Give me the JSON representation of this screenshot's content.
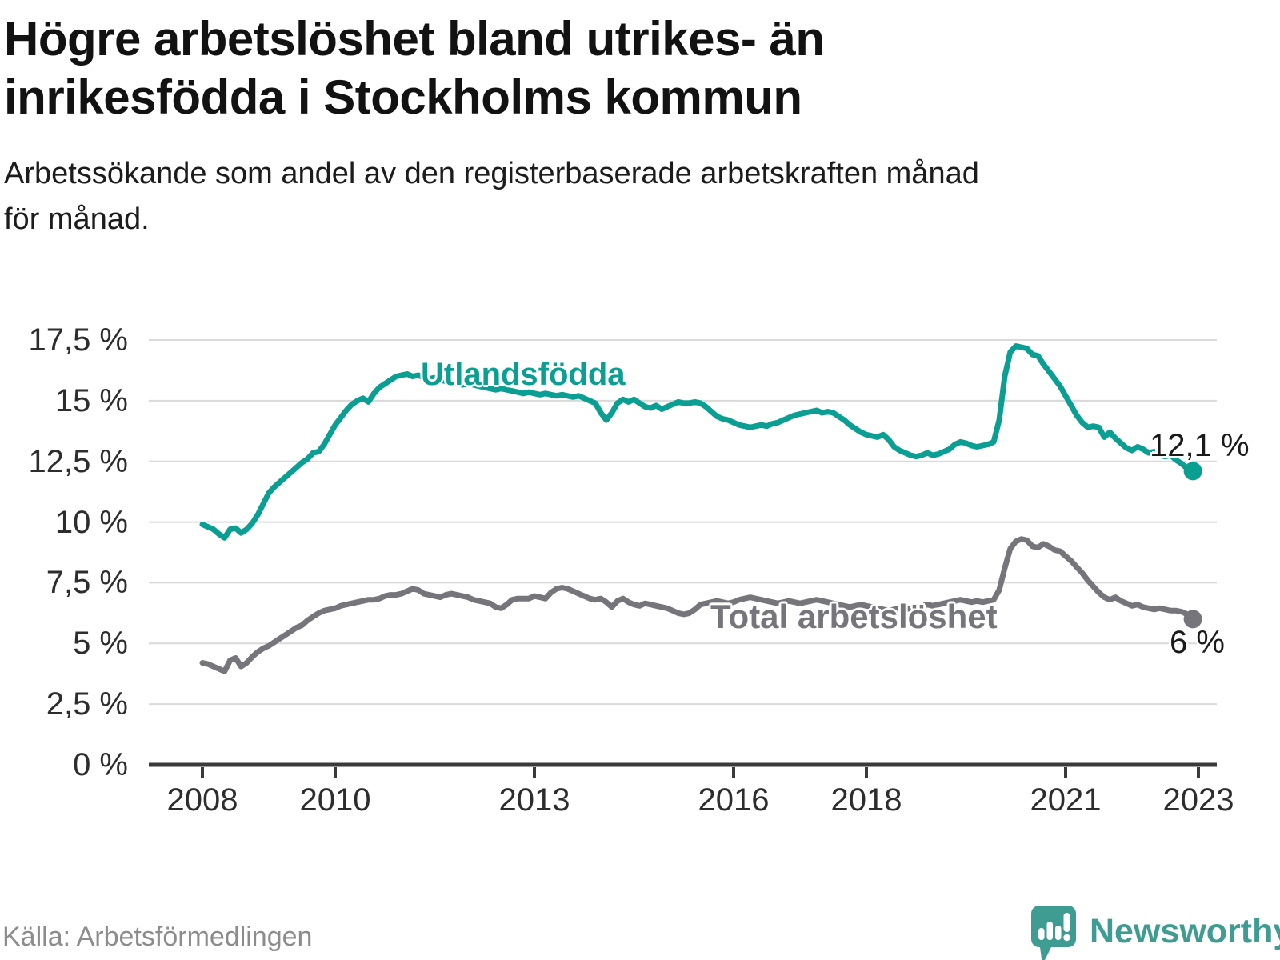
{
  "colors": {
    "accent_teal": "#0B9F94",
    "series_gray": "#76757B",
    "grid": "#dadada",
    "axis": "#3a3a3a",
    "title_text": "#121212",
    "tick_text": "#2d2d2d",
    "source_text": "#8c8c8c",
    "brand_teal": "#3F9C92"
  },
  "source": {
    "label": "Källa: Arbetsförmedlingen"
  },
  "branding": {
    "name": "Newsworthy",
    "logo_icon": "speech-bubble-bar-chart-exclamation-icon"
  },
  "chart_data": {
    "type": "line",
    "title": "Högre arbetslöshet bland utrikes- än\ninrikesfödda i Stockholms kommun",
    "subtitle": "Arbetssökande som andel av den registerbaserade arbetskraften månad\nför månad.",
    "unit": "%",
    "frequency": "monthly",
    "x_start": "2008-01",
    "x_end": "2022-12",
    "grid": "horizontal",
    "legend_position": "inline-labels",
    "ylim": [
      0,
      17.5
    ],
    "x_ticks": [
      {
        "year": 2008,
        "label": "2008"
      },
      {
        "year": 2010,
        "label": "2010"
      },
      {
        "year": 2013,
        "label": "2013"
      },
      {
        "year": 2016,
        "label": "2016"
      },
      {
        "year": 2018,
        "label": "2018"
      },
      {
        "year": 2021,
        "label": "2021"
      },
      {
        "year": 2023,
        "label": "2023"
      }
    ],
    "y_ticks": [
      {
        "value": 0,
        "label": "0 %"
      },
      {
        "value": 2.5,
        "label": "2,5 %"
      },
      {
        "value": 5,
        "label": "5 %"
      },
      {
        "value": 7.5,
        "label": "7,5 %"
      },
      {
        "value": 10,
        "label": "10 %"
      },
      {
        "value": 12.5,
        "label": "12,5 %"
      },
      {
        "value": 15,
        "label": "15 %"
      },
      {
        "value": 17.5,
        "label": "17,5 %"
      }
    ],
    "series": [
      {
        "name": "Utlandsfödda",
        "color": "#0B9F94",
        "end_label": "12,1 %",
        "end_value": 12.1,
        "values": [
          9.9,
          9.8,
          9.7,
          9.5,
          9.35,
          9.7,
          9.75,
          9.55,
          9.7,
          9.95,
          10.3,
          10.75,
          11.2,
          11.45,
          11.65,
          11.85,
          12.05,
          12.25,
          12.45,
          12.6,
          12.85,
          12.9,
          13.2,
          13.6,
          14.0,
          14.3,
          14.6,
          14.85,
          15.0,
          15.1,
          14.95,
          15.3,
          15.55,
          15.7,
          15.85,
          16.0,
          16.05,
          16.1,
          16.0,
          16.05,
          15.95,
          15.9,
          15.95,
          15.85,
          15.8,
          15.75,
          15.7,
          15.65,
          15.7,
          15.65,
          15.6,
          15.55,
          15.5,
          15.45,
          15.5,
          15.45,
          15.4,
          15.35,
          15.3,
          15.35,
          15.3,
          15.25,
          15.3,
          15.25,
          15.2,
          15.25,
          15.2,
          15.15,
          15.2,
          15.1,
          15.0,
          14.9,
          14.5,
          14.2,
          14.5,
          14.9,
          15.05,
          14.95,
          15.05,
          14.9,
          14.75,
          14.7,
          14.8,
          14.65,
          14.75,
          14.85,
          14.95,
          14.9,
          14.9,
          14.95,
          14.9,
          14.75,
          14.55,
          14.35,
          14.25,
          14.2,
          14.1,
          14.0,
          13.95,
          13.9,
          13.95,
          14.0,
          13.95,
          14.05,
          14.1,
          14.2,
          14.3,
          14.4,
          14.45,
          14.5,
          14.55,
          14.6,
          14.5,
          14.55,
          14.5,
          14.35,
          14.2,
          14.0,
          13.85,
          13.7,
          13.6,
          13.55,
          13.5,
          13.6,
          13.4,
          13.1,
          12.95,
          12.85,
          12.75,
          12.7,
          12.75,
          12.85,
          12.75,
          12.8,
          12.9,
          13.0,
          13.2,
          13.3,
          13.25,
          13.15,
          13.1,
          13.15,
          13.2,
          13.3,
          14.2,
          16.0,
          17.0,
          17.25,
          17.2,
          17.15,
          16.9,
          16.85,
          16.5,
          16.2,
          15.9,
          15.6,
          15.2,
          14.8,
          14.4,
          14.1,
          13.9,
          13.95,
          13.9,
          13.5,
          13.7,
          13.45,
          13.25,
          13.05,
          12.95,
          13.1,
          13.0,
          12.85,
          12.9,
          12.75,
          12.7,
          12.75,
          12.55,
          12.4,
          12.2,
          12.1
        ]
      },
      {
        "name": "Total arbetslöshet",
        "color": "#76757B",
        "end_label": "6 %",
        "end_value": 6.0,
        "values": [
          4.2,
          4.15,
          4.05,
          3.95,
          3.85,
          4.3,
          4.4,
          4.05,
          4.2,
          4.45,
          4.65,
          4.8,
          4.9,
          5.05,
          5.2,
          5.35,
          5.5,
          5.65,
          5.75,
          5.95,
          6.1,
          6.25,
          6.35,
          6.4,
          6.45,
          6.55,
          6.6,
          6.65,
          6.7,
          6.75,
          6.8,
          6.8,
          6.85,
          6.95,
          7.0,
          7.0,
          7.05,
          7.15,
          7.25,
          7.2,
          7.05,
          7.0,
          6.95,
          6.9,
          7.0,
          7.05,
          7.0,
          6.95,
          6.9,
          6.8,
          6.75,
          6.7,
          6.65,
          6.5,
          6.45,
          6.6,
          6.8,
          6.85,
          6.85,
          6.85,
          6.95,
          6.9,
          6.85,
          7.1,
          7.25,
          7.3,
          7.25,
          7.15,
          7.05,
          6.95,
          6.85,
          6.8,
          6.85,
          6.7,
          6.5,
          6.75,
          6.85,
          6.7,
          6.6,
          6.55,
          6.65,
          6.6,
          6.55,
          6.5,
          6.45,
          6.35,
          6.25,
          6.2,
          6.25,
          6.4,
          6.6,
          6.65,
          6.7,
          6.75,
          6.7,
          6.65,
          6.7,
          6.8,
          6.85,
          6.9,
          6.85,
          6.8,
          6.75,
          6.7,
          6.65,
          6.7,
          6.75,
          6.7,
          6.65,
          6.7,
          6.75,
          6.8,
          6.75,
          6.7,
          6.65,
          6.6,
          6.55,
          6.5,
          6.55,
          6.6,
          6.55,
          6.5,
          6.45,
          6.4,
          6.35,
          6.4,
          6.45,
          6.4,
          6.45,
          6.5,
          6.55,
          6.6,
          6.55,
          6.6,
          6.65,
          6.7,
          6.75,
          6.8,
          6.75,
          6.7,
          6.75,
          6.7,
          6.75,
          6.8,
          7.2,
          8.1,
          8.9,
          9.2,
          9.3,
          9.25,
          9.0,
          8.95,
          9.1,
          9.0,
          8.85,
          8.8,
          8.6,
          8.4,
          8.15,
          7.9,
          7.6,
          7.35,
          7.1,
          6.9,
          6.8,
          6.9,
          6.75,
          6.65,
          6.55,
          6.6,
          6.5,
          6.45,
          6.4,
          6.45,
          6.4,
          6.35,
          6.35,
          6.3,
          6.2,
          6.0
        ]
      }
    ]
  }
}
